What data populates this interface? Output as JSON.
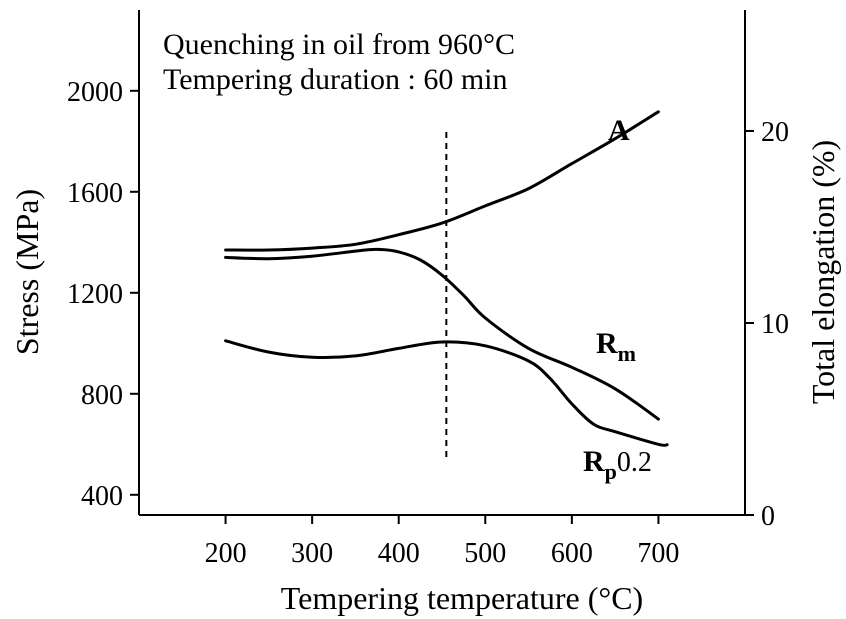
{
  "chart_data": {
    "type": "line",
    "annotations": [
      "Quenching in oil from 960°C",
      "Tempering duration : 60 min"
    ],
    "xlabel": "Tempering temperature  (°C)",
    "ylabel_left": "Stress   (MPa)",
    "ylabel_right": "Total elongation  (%)",
    "x_ticks": [
      "200",
      "300",
      "400",
      "500",
      "600",
      "700"
    ],
    "y_left_ticks": [
      "400",
      "800",
      "1200",
      "1600",
      "2000"
    ],
    "y_right_ticks": [
      "0",
      "10",
      "20"
    ],
    "xlim": [
      100,
      800
    ],
    "ylim_left": [
      320,
      2320
    ],
    "ylim_right": [
      0,
      26.3
    ],
    "vertical_marker_x": 455,
    "series": [
      {
        "name": "A",
        "axis": "right",
        "label_main": "A",
        "label_sub": "",
        "label_rest": "",
        "x": [
          200,
          250,
          300,
          350,
          400,
          450,
          500,
          550,
          600,
          650,
          700
        ],
        "y": [
          13.8,
          13.8,
          13.9,
          14.1,
          14.6,
          15.2,
          16.1,
          17.0,
          18.3,
          19.6,
          21.0
        ]
      },
      {
        "name": "Rm",
        "axis": "left",
        "label_main": "R",
        "label_sub": "m",
        "label_rest": "",
        "x": [
          200,
          250,
          300,
          350,
          375,
          400,
          425,
          450,
          475,
          500,
          550,
          600,
          650,
          700
        ],
        "y": [
          1340,
          1335,
          1345,
          1365,
          1372,
          1362,
          1330,
          1270,
          1190,
          1100,
          980,
          905,
          820,
          700
        ]
      },
      {
        "name": "Rp0.2",
        "axis": "left",
        "label_main": "R",
        "label_sub": "p",
        "label_rest": "0.2",
        "x": [
          200,
          250,
          300,
          350,
          400,
          450,
          500,
          550,
          575,
          600,
          625,
          650,
          700,
          710
        ],
        "y": [
          1010,
          965,
          945,
          950,
          980,
          1005,
          990,
          930,
          860,
          760,
          680,
          650,
          600,
          598
        ]
      }
    ]
  }
}
